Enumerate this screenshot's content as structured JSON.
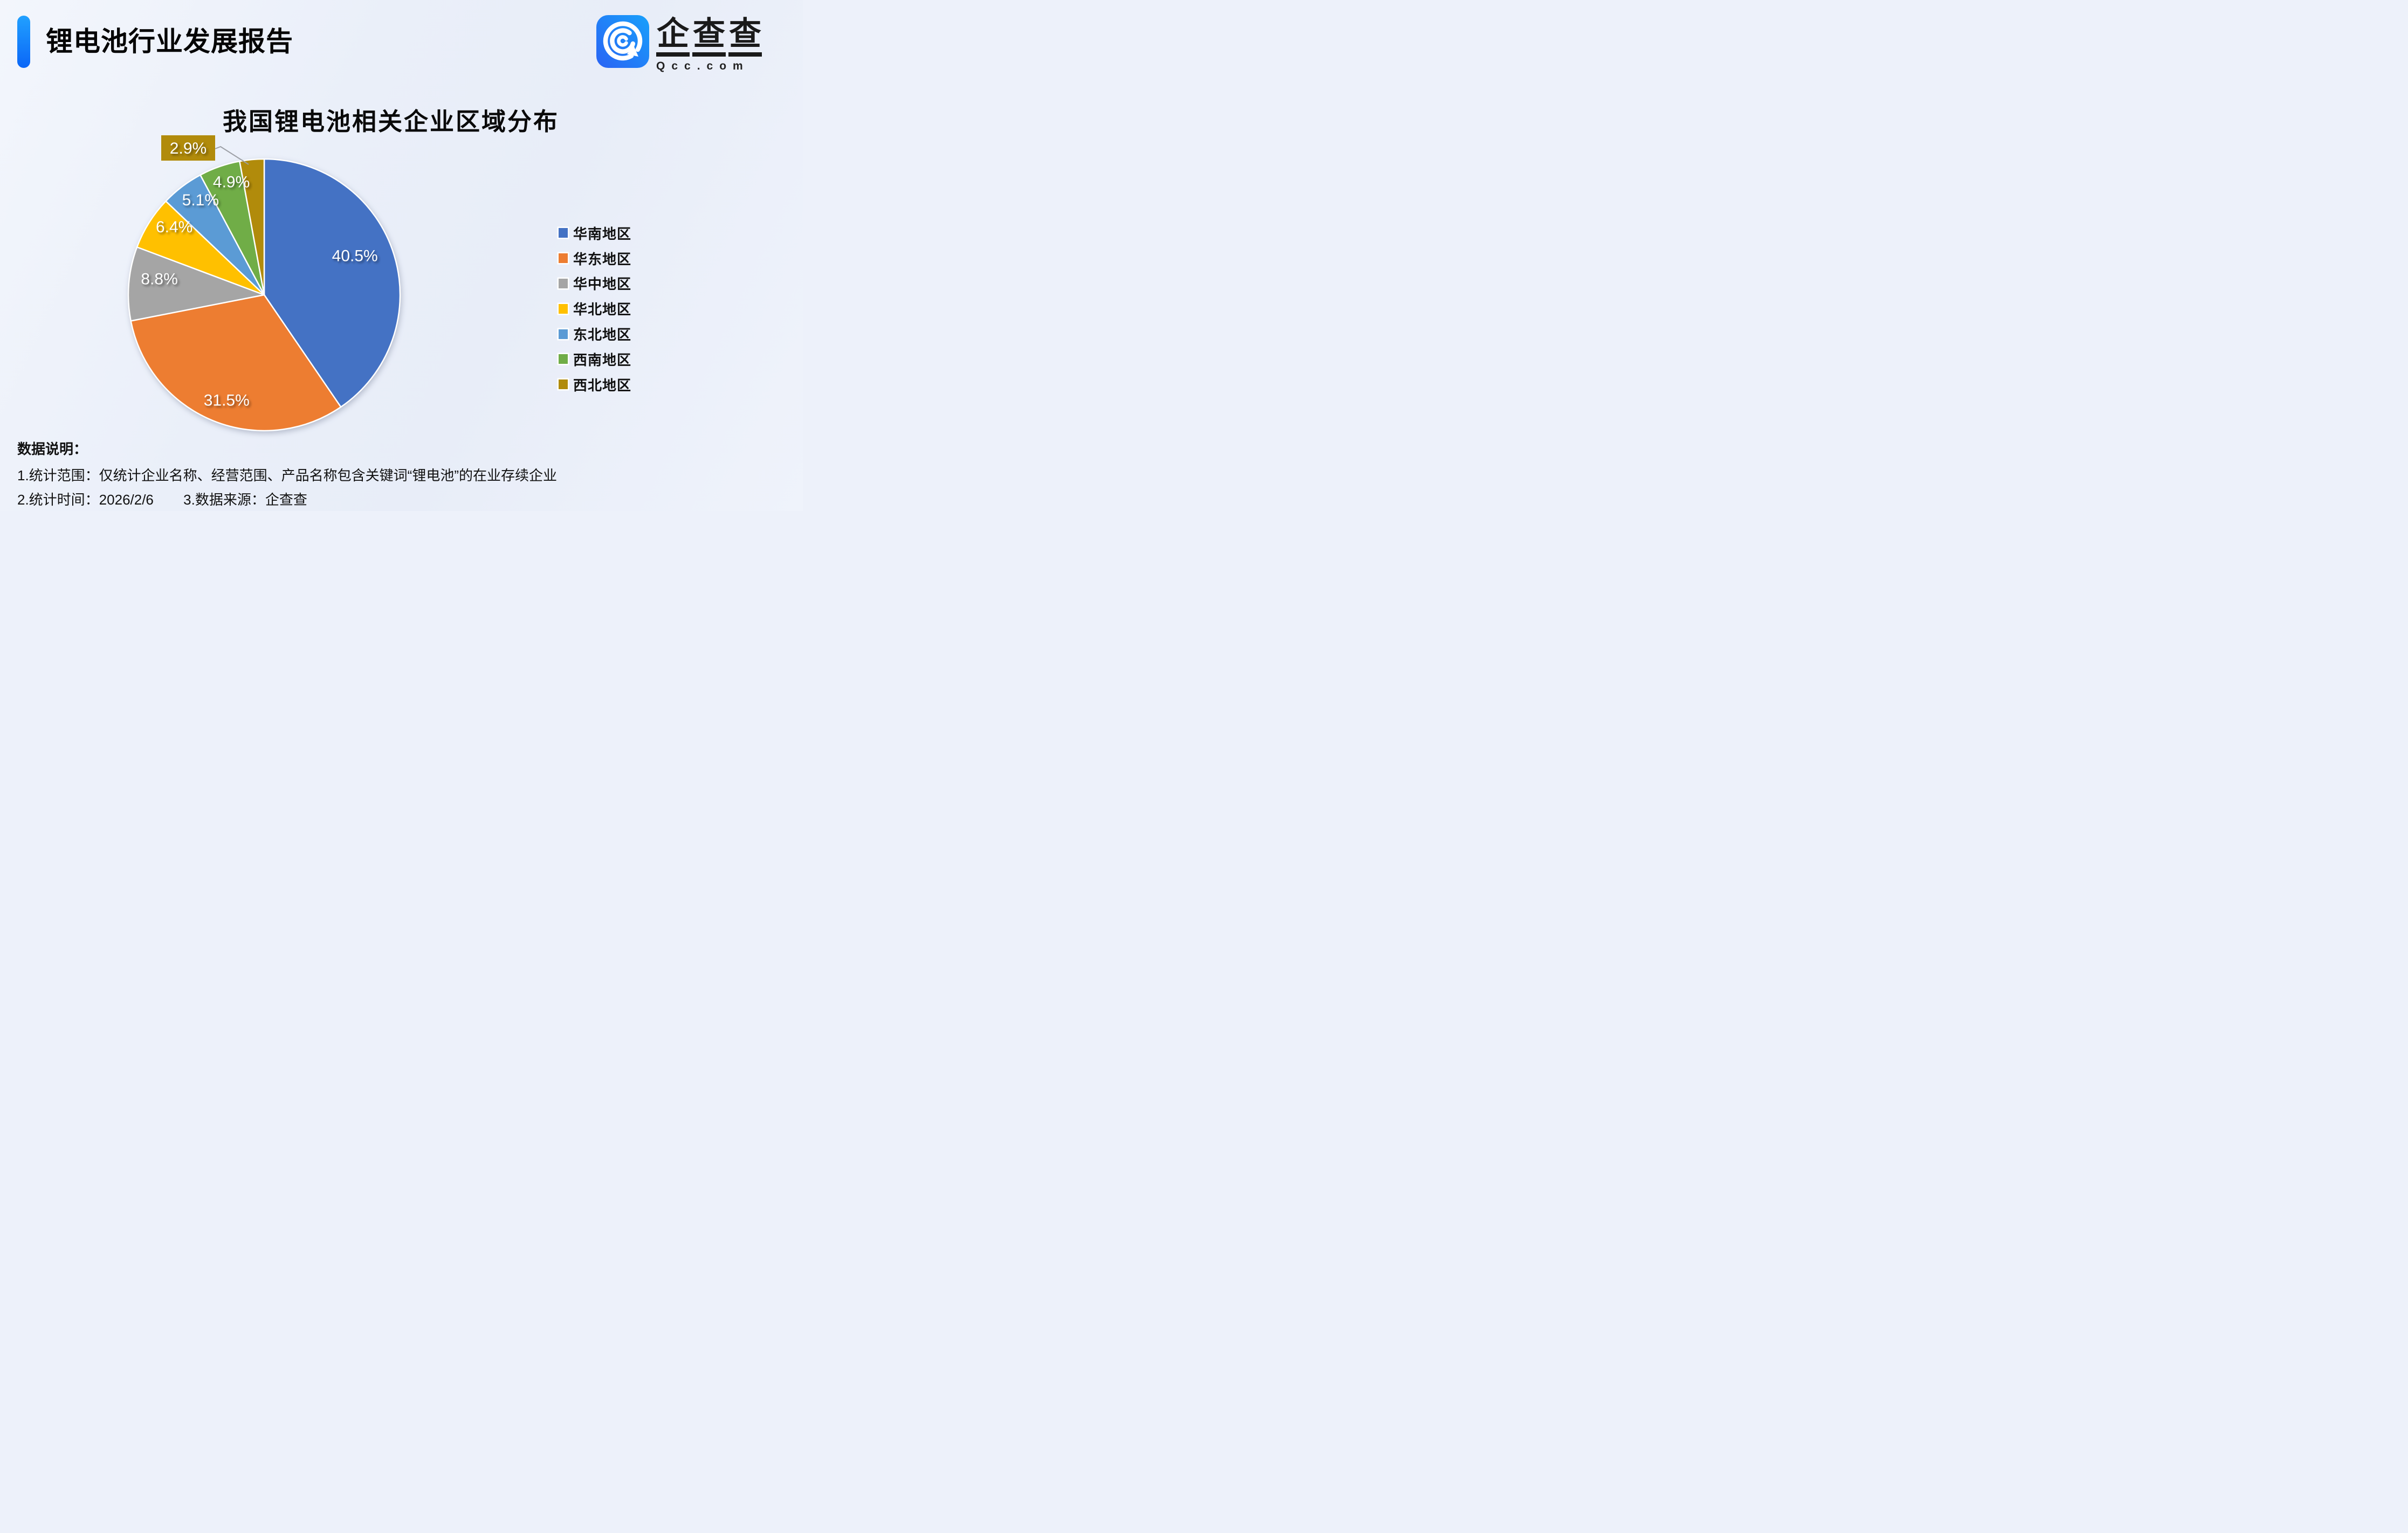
{
  "page": {
    "background": "#edf1fa"
  },
  "header": {
    "title": "锂电池行业发展报告",
    "accent_color_top": "#21A1FF",
    "accent_color_bottom": "#0B66F7"
  },
  "logo": {
    "brand_name": "企查查",
    "domain": "Qcc.com",
    "icon_color_left": "#2A63F4",
    "icon_color_right": "#18A0FB"
  },
  "chart_data": {
    "type": "pie",
    "title": "我国锂电池相关企业区域分布",
    "legend_position": "right",
    "label_color": "#ffffff",
    "leader_line_color": "#9da0a6",
    "series": [
      {
        "label": "华南地区",
        "value": 40.5,
        "display": "40.5%",
        "color": "#4472C4"
      },
      {
        "label": "华东地区",
        "value": 31.5,
        "display": "31.5%",
        "color": "#ED7D31"
      },
      {
        "label": "华中地区",
        "value": 8.8,
        "display": "8.8%",
        "color": "#A5A5A5"
      },
      {
        "label": "华北地区",
        "value": 6.4,
        "display": "6.4%",
        "color": "#FFC000"
      },
      {
        "label": "东北地区",
        "value": 5.1,
        "display": "5.1%",
        "color": "#5B9BD5"
      },
      {
        "label": "西南地区",
        "value": 4.9,
        "display": "4.9%",
        "color": "#70AD47"
      },
      {
        "label": "西北地区",
        "value": 2.9,
        "display": "2.9%",
        "color": "#B18B0B",
        "callout": true
      }
    ]
  },
  "footer": {
    "heading": "数据说明：",
    "note1": "1.统计范围：仅统计企业名称、经营范围、产品名称包含关键词“锂电池”的在业存续企业",
    "note2_left": "2.统计时间：2026/2/6",
    "note2_right": "3.数据来源：企查查"
  }
}
